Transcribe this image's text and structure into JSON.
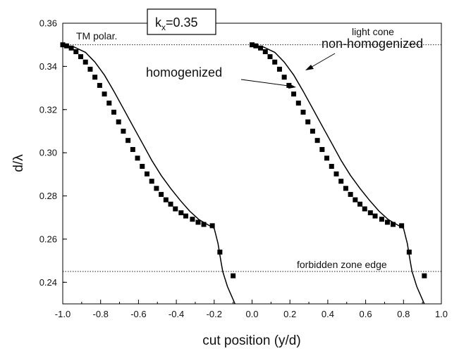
{
  "chart_data": {
    "type": "line",
    "xlabel": "cut position (y/d)",
    "ylabel": "d/λ",
    "xlim": [
      -1.0,
      1.0
    ],
    "ylim": [
      0.23,
      0.36
    ],
    "x_ticks": [
      "-1.0",
      "-0.8",
      "-0.6",
      "-0.4",
      "-0.2",
      "0.0",
      "0.2",
      "0.4",
      "0.6",
      "0.8",
      "1.0"
    ],
    "x_tick_values": [
      -1.0,
      -0.8,
      -0.6,
      -0.4,
      -0.2,
      0.0,
      0.2,
      0.4,
      0.6,
      0.8,
      1.0
    ],
    "y_ticks": [
      "0.24",
      "0.26",
      "0.28",
      "0.30",
      "0.32",
      "0.34",
      "0.36"
    ],
    "y_tick_values": [
      0.24,
      0.26,
      0.28,
      0.3,
      0.32,
      0.34,
      0.36
    ],
    "grid": false,
    "reference_lines": [
      {
        "label": "light cone",
        "y": 0.35
      },
      {
        "label": "forbidden zone edge",
        "y": 0.245
      }
    ],
    "annotations": {
      "polarization": "TM polar.",
      "kx_base": "k",
      "kx_sub": "x",
      "kx_value": "=0.35",
      "homogenized": "homogenized",
      "non_homogenized": "non-homogenized"
    },
    "series": [
      {
        "name": "non-homogenized",
        "style": "line",
        "color": "#000000",
        "segments": [
          [
            [
              -1.0,
              0.35
            ],
            [
              -0.94,
              0.349
            ],
            [
              -0.88,
              0.3465
            ],
            [
              -0.83,
              0.342
            ],
            [
              -0.78,
              0.336
            ],
            [
              -0.73,
              0.3285
            ],
            [
              -0.68,
              0.3205
            ],
            [
              -0.63,
              0.3125
            ],
            [
              -0.58,
              0.3045
            ],
            [
              -0.53,
              0.2965
            ],
            [
              -0.48,
              0.2895
            ],
            [
              -0.43,
              0.2835
            ],
            [
              -0.38,
              0.278
            ],
            [
              -0.33,
              0.273
            ],
            [
              -0.28,
              0.269
            ],
            [
              -0.23,
              0.2665
            ],
            [
              -0.2,
              0.265
            ],
            [
              -0.18,
              0.258
            ],
            [
              -0.165,
              0.25
            ],
            [
              -0.155,
              0.245
            ],
            [
              -0.13,
              0.238
            ],
            [
              -0.09,
              0.23
            ]
          ],
          [
            [
              0.0,
              0.35
            ],
            [
              0.06,
              0.349
            ],
            [
              0.12,
              0.3465
            ],
            [
              0.17,
              0.342
            ],
            [
              0.22,
              0.336
            ],
            [
              0.27,
              0.3285
            ],
            [
              0.32,
              0.3205
            ],
            [
              0.37,
              0.3125
            ],
            [
              0.42,
              0.3045
            ],
            [
              0.47,
              0.2965
            ],
            [
              0.52,
              0.2895
            ],
            [
              0.57,
              0.2835
            ],
            [
              0.62,
              0.278
            ],
            [
              0.67,
              0.273
            ],
            [
              0.72,
              0.269
            ],
            [
              0.77,
              0.2665
            ],
            [
              0.8,
              0.265
            ],
            [
              0.82,
              0.258
            ],
            [
              0.835,
              0.25
            ],
            [
              0.845,
              0.245
            ],
            [
              0.87,
              0.238
            ],
            [
              0.91,
              0.23
            ]
          ]
        ]
      },
      {
        "name": "homogenized",
        "style": "square markers",
        "color": "#000000",
        "segments": [
          [
            [
              -1.0,
              0.35
            ],
            [
              -0.98,
              0.3495
            ],
            [
              -0.955,
              0.3485
            ],
            [
              -0.93,
              0.3468
            ],
            [
              -0.905,
              0.3445
            ],
            [
              -0.88,
              0.342
            ],
            [
              -0.855,
              0.3387
            ],
            [
              -0.83,
              0.335
            ],
            [
              -0.805,
              0.3312
            ],
            [
              -0.78,
              0.3272
            ],
            [
              -0.755,
              0.323
            ],
            [
              -0.73,
              0.3188
            ],
            [
              -0.705,
              0.3143
            ],
            [
              -0.68,
              0.31
            ],
            [
              -0.655,
              0.3057
            ],
            [
              -0.63,
              0.3015
            ],
            [
              -0.605,
              0.2975
            ],
            [
              -0.58,
              0.2937
            ],
            [
              -0.555,
              0.2902
            ],
            [
              -0.53,
              0.2868
            ],
            [
              -0.505,
              0.2835
            ],
            [
              -0.48,
              0.2807
            ],
            [
              -0.455,
              0.2782
            ],
            [
              -0.43,
              0.2762
            ],
            [
              -0.405,
              0.274
            ],
            [
              -0.375,
              0.2722
            ],
            [
              -0.35,
              0.2707
            ],
            [
              -0.315,
              0.2692
            ],
            [
              -0.285,
              0.2678
            ],
            [
              -0.255,
              0.2668
            ],
            [
              -0.21,
              0.2662
            ],
            [
              -0.17,
              0.254
            ],
            [
              -0.1,
              0.243
            ]
          ],
          [
            [
              0.0,
              0.35
            ],
            [
              0.02,
              0.3495
            ],
            [
              0.045,
              0.3485
            ],
            [
              0.07,
              0.3468
            ],
            [
              0.095,
              0.3445
            ],
            [
              0.12,
              0.342
            ],
            [
              0.145,
              0.3387
            ],
            [
              0.17,
              0.335
            ],
            [
              0.195,
              0.3312
            ],
            [
              0.22,
              0.3272
            ],
            [
              0.245,
              0.323
            ],
            [
              0.27,
              0.3188
            ],
            [
              0.295,
              0.3143
            ],
            [
              0.32,
              0.31
            ],
            [
              0.345,
              0.3057
            ],
            [
              0.37,
              0.3015
            ],
            [
              0.395,
              0.2975
            ],
            [
              0.42,
              0.2937
            ],
            [
              0.445,
              0.2902
            ],
            [
              0.47,
              0.2868
            ],
            [
              0.495,
              0.2835
            ],
            [
              0.52,
              0.2807
            ],
            [
              0.545,
              0.2782
            ],
            [
              0.57,
              0.2762
            ],
            [
              0.595,
              0.274
            ],
            [
              0.625,
              0.2722
            ],
            [
              0.65,
              0.2707
            ],
            [
              0.685,
              0.2692
            ],
            [
              0.715,
              0.2678
            ],
            [
              0.745,
              0.2668
            ],
            [
              0.79,
              0.2662
            ],
            [
              0.83,
              0.254
            ],
            [
              0.91,
              0.243
            ]
          ]
        ]
      }
    ]
  }
}
